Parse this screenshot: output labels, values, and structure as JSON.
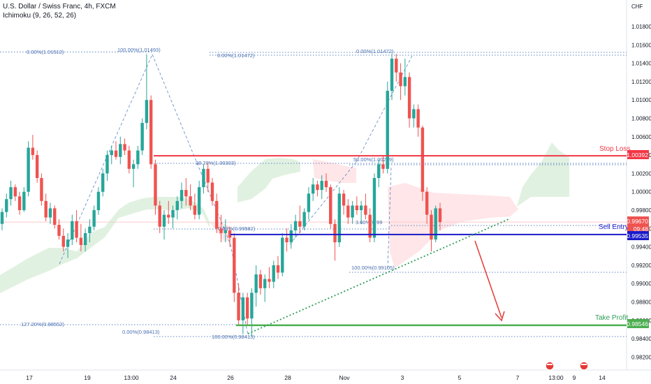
{
  "header": {
    "title": "U.S. Dollar / Swiss Franc, 4h, FXCM",
    "indicator": "Ichimoku (9, 26, 52, 26)"
  },
  "colors": {
    "bull": "#26a69a",
    "bear": "#ef5350",
    "stop_loss": "#f23645",
    "sell_entry": "#1a1ac8",
    "take_profit": "#4caf50",
    "fib": "#5b84c4",
    "trend": "#2e9d57",
    "cloud_green": "#c8e6c9",
    "cloud_red": "#ffcdd2"
  },
  "axis": {
    "currency": "CHF",
    "y_ticks": [
      "1.01800",
      "1.01600",
      "1.01400",
      "1.01200",
      "1.01000",
      "1.00800",
      "1.00600",
      "1.00400",
      "1.00200",
      "1.00000",
      "0.99800",
      "0.99600",
      "0.99400",
      "0.99200",
      "0.99000",
      "0.98800",
      "0.98600",
      "0.98400",
      "0.98200"
    ],
    "x_ticks": [
      "17",
      "19",
      "13:00",
      "24",
      "26",
      "28",
      "Nov",
      "3",
      "5",
      "7",
      "9",
      "13:00",
      "14"
    ]
  },
  "price_tags": {
    "stop_loss": "1.00392",
    "current": "0.99670",
    "countdown": "09:48",
    "sell_entry": "0.99535",
    "take_profit": "0.98546"
  },
  "labels": {
    "stop_loss": "Stop Loss",
    "sell_entry": "Sell Entry",
    "take_profit": "Take Profit"
  },
  "fib_labels": [
    "0.00%(1.01512)",
    "100.00%(1.01493)",
    "0.00%(1.01472)",
    "0.00%(1.01472)",
    "38.20%(1.00303)",
    "50.00%(1.00289)",
    "0.00%(0.99582)",
    "3.60%(0.99",
    "100.00%(0.99105)",
    "127.20%(0.98552)",
    "0.00%(0.98413)",
    "100.00%(0.98413)"
  ],
  "chart_data": {
    "type": "candlestick",
    "instrument": "U.S. Dollar / Swiss Franc",
    "timeframe": "4h",
    "source": "FXCM",
    "ylim": [
      0.981,
      1.0195
    ],
    "levels": {
      "stop_loss": 1.00392,
      "sell_entry": 0.99535,
      "take_profit": 0.98546,
      "current": 0.9967
    },
    "candles": [
      [
        0.9965,
        0.9982,
        0.9958,
        0.9978
      ],
      [
        0.9978,
        0.9998,
        0.9972,
        0.9992
      ],
      [
        0.9992,
        1.0012,
        0.9985,
        1.0005
      ],
      [
        1.0005,
        1.0008,
        0.999,
        0.9995
      ],
      [
        0.9995,
        1.0,
        0.9975,
        0.998
      ],
      [
        0.998,
        1.0005,
        0.9978,
        1.0
      ],
      [
        1.0,
        1.0055,
        0.9995,
        1.0048
      ],
      [
        1.0048,
        1.0062,
        1.0035,
        1.004
      ],
      [
        1.004,
        1.0045,
        1.001,
        1.0015
      ],
      [
        1.0015,
        1.002,
        0.9985,
        0.999
      ],
      [
        0.999,
        0.9998,
        0.9968,
        0.9972
      ],
      [
        0.9972,
        0.9988,
        0.9965,
        0.9982
      ],
      [
        0.9982,
        0.9985,
        0.996,
        0.9964
      ],
      [
        0.9964,
        0.997,
        0.9948,
        0.9952
      ],
      [
        0.9952,
        0.996,
        0.9935,
        0.994
      ],
      [
        0.994,
        0.9955,
        0.9928,
        0.9948
      ],
      [
        0.9948,
        0.9975,
        0.9942,
        0.9968
      ],
      [
        0.9968,
        0.998,
        0.9945,
        0.995
      ],
      [
        0.995,
        0.9965,
        0.9935,
        0.9942
      ],
      [
        0.9942,
        0.996,
        0.9935,
        0.9955
      ],
      [
        0.9955,
        0.997,
        0.9945,
        0.9962
      ],
      [
        0.9962,
        0.9985,
        0.9958,
        0.998
      ],
      [
        0.998,
        1.0005,
        0.9975,
        1.0
      ],
      [
        1.0,
        1.0025,
        0.9995,
        1.002
      ],
      [
        1.002,
        1.0045,
        1.0012,
        1.004
      ],
      [
        1.004,
        1.005,
        1.003,
        1.0045
      ],
      [
        1.0045,
        1.0055,
        1.0035,
        1.0038
      ],
      [
        1.0038,
        1.006,
        1.003,
        1.0052
      ],
      [
        1.0052,
        1.0058,
        1.004,
        1.0045
      ],
      [
        1.0045,
        1.005,
        1.002,
        1.0025
      ],
      [
        1.0025,
        1.0035,
        1.0005,
        1.003
      ],
      [
        1.003,
        1.005,
        1.0025,
        1.0045
      ],
      [
        1.0045,
        1.008,
        1.004,
        1.0075
      ],
      [
        1.0075,
        1.015,
        1.0068,
        1.01
      ],
      [
        1.01,
        1.0105,
        1.0025,
        1.003
      ],
      [
        1.003,
        1.0035,
        0.9975,
        0.9985
      ],
      [
        0.9985,
        0.999,
        0.9955,
        0.9962
      ],
      [
        0.9962,
        0.998,
        0.9948,
        0.9975
      ],
      [
        0.9975,
        0.999,
        0.9965,
        0.9972
      ],
      [
        0.9972,
        0.9985,
        0.996,
        0.998
      ],
      [
        0.998,
        0.9995,
        0.997,
        0.999
      ],
      [
        0.999,
        1.001,
        0.9982,
        1.0002
      ],
      [
        1.0002,
        1.0015,
        0.9985,
        0.9995
      ],
      [
        0.9995,
        1.0008,
        0.998,
        0.9985
      ],
      [
        0.9985,
        0.9998,
        0.997,
        0.9975
      ],
      [
        0.9975,
        1.0012,
        0.997,
        1.0005
      ],
      [
        1.0005,
        1.003,
        0.9998,
        1.0025
      ],
      [
        1.0025,
        1.0032,
        1.0,
        1.001
      ],
      [
        1.001,
        1.0015,
        0.9985,
        0.999
      ],
      [
        0.999,
        0.9998,
        0.9955,
        0.996
      ],
      [
        0.996,
        0.9975,
        0.9945,
        0.9955
      ],
      [
        0.9955,
        0.997,
        0.9945,
        0.9958
      ],
      [
        0.9958,
        0.9962,
        0.994,
        0.995
      ],
      [
        0.995,
        0.9955,
        0.988,
        0.989
      ],
      [
        0.989,
        0.99,
        0.9855,
        0.986
      ],
      [
        0.986,
        0.989,
        0.9845,
        0.9885
      ],
      [
        0.9885,
        0.989,
        0.9855,
        0.9862
      ],
      [
        0.9862,
        0.9895,
        0.9842,
        0.989
      ],
      [
        0.989,
        0.992,
        0.9875,
        0.991
      ],
      [
        0.991,
        0.9915,
        0.9888,
        0.9895
      ],
      [
        0.9895,
        0.991,
        0.988,
        0.9905
      ],
      [
        0.9905,
        0.9918,
        0.9895,
        0.9902
      ],
      [
        0.9902,
        0.9925,
        0.9895,
        0.992
      ],
      [
        0.992,
        0.993,
        0.9905,
        0.9912
      ],
      [
        0.9912,
        0.9955,
        0.9908,
        0.995
      ],
      [
        0.995,
        0.996,
        0.9935,
        0.9945
      ],
      [
        0.9945,
        0.9965,
        0.9938,
        0.9958
      ],
      [
        0.9958,
        0.9975,
        0.995,
        0.9968
      ],
      [
        0.9968,
        0.9985,
        0.9955,
        0.9962
      ],
      [
        0.9962,
        0.9982,
        0.9958,
        0.9978
      ],
      [
        0.9978,
        1.0005,
        0.997,
        0.9998
      ],
      [
        0.9998,
        1.0015,
        0.999,
        1.0008
      ],
      [
        1.0008,
        1.0012,
        0.9995,
        1.0002
      ],
      [
        1.0002,
        1.0018,
        0.9992,
        1.0012
      ],
      [
        1.0012,
        1.002,
        1.0,
        1.0005
      ],
      [
        1.0005,
        1.0008,
        0.996,
        0.9965
      ],
      [
        0.9965,
        0.997,
        0.9925,
        0.9945
      ],
      [
        0.9945,
        1.0005,
        0.994,
        0.9998
      ],
      [
        0.9998,
        1.0002,
        0.9975,
        0.9985
      ],
      [
        0.9985,
        0.9992,
        0.9965,
        0.9972
      ],
      [
        0.9972,
        0.999,
        0.9965,
        0.9985
      ],
      [
        0.9985,
        0.9995,
        0.9975,
        0.998
      ],
      [
        0.998,
        0.999,
        0.9965,
        0.9985
      ],
      [
        0.9985,
        0.9998,
        0.997,
        0.9975
      ],
      [
        0.9975,
        0.9982,
        0.9945,
        0.995
      ],
      [
        0.995,
        1.002,
        0.9945,
        1.0015
      ],
      [
        1.0015,
        1.0035,
        1.0005,
        1.003
      ],
      [
        1.003,
        1.004,
        1.002,
        1.0025
      ],
      [
        1.0025,
        1.012,
        1.002,
        1.011
      ],
      [
        1.011,
        1.015,
        1.01,
        1.0145
      ],
      [
        1.0145,
        1.015,
        1.012,
        1.013
      ],
      [
        1.013,
        1.014,
        1.01,
        1.0115
      ],
      [
        1.0115,
        1.0145,
        1.0105,
        1.0125
      ],
      [
        1.0125,
        1.013,
        1.007,
        1.008
      ],
      [
        1.008,
        1.0095,
        1.007,
        1.009
      ],
      [
        1.009,
        1.0095,
        1.006,
        1.007
      ],
      [
        1.007,
        1.0072,
        0.999,
        1.0
      ],
      [
        1.0,
        1.0005,
        0.9965,
        0.9975
      ],
      [
        0.9975,
        0.998,
        0.9935,
        0.9948
      ],
      [
        0.9948,
        0.9985,
        0.9945,
        0.9982
      ],
      [
        0.9982,
        0.9988,
        0.9958,
        0.9967
      ]
    ]
  }
}
